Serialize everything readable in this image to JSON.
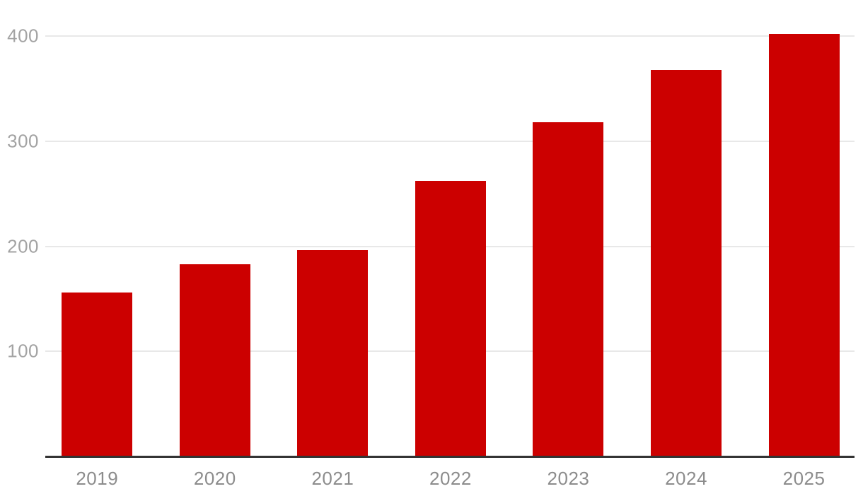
{
  "chart_data": {
    "type": "bar",
    "title": "",
    "categories": [
      "2019",
      "2020",
      "2021",
      "2022",
      "2023",
      "2024",
      "2025"
    ],
    "values": [
      156,
      183,
      196,
      262,
      318,
      368,
      402
    ],
    "xlabel": "",
    "ylabel": "",
    "ylim": [
      0,
      434
    ],
    "yticks": [
      100,
      200,
      300,
      400
    ],
    "grid": true,
    "legend": false,
    "legend_position": "none",
    "bar_color": "#cc0000",
    "axis_line_color": "#333333",
    "gridline_color": "#e8e8e8",
    "ytick_label_color": "#a3a3a3",
    "xtick_label_color": "#8c8c8c"
  }
}
